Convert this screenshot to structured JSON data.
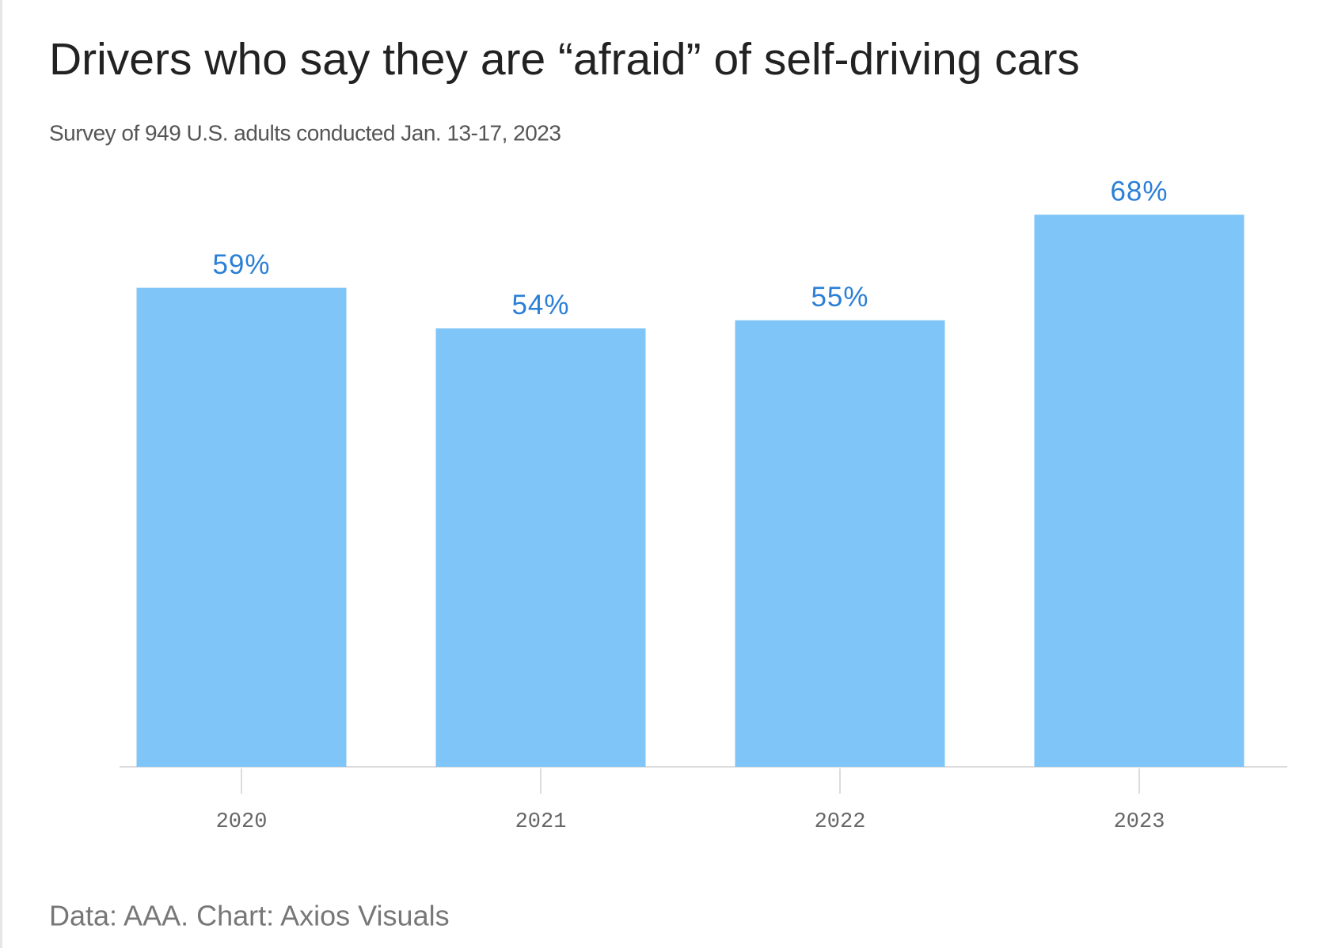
{
  "chart_data": {
    "type": "bar",
    "title": "Drivers who say they are “afraid” of self-driving cars",
    "subtitle": "Survey of 949 U.S. adults conducted Jan. 13-17, 2023",
    "source": "Data: AAA. Chart: Axios Visuals",
    "categories": [
      "2020",
      "2021",
      "2022",
      "2023"
    ],
    "values": [
      59,
      54,
      55,
      68
    ],
    "value_labels": [
      "59%",
      "54%",
      "55%",
      "68%"
    ],
    "color": "#80c5f7"
  }
}
